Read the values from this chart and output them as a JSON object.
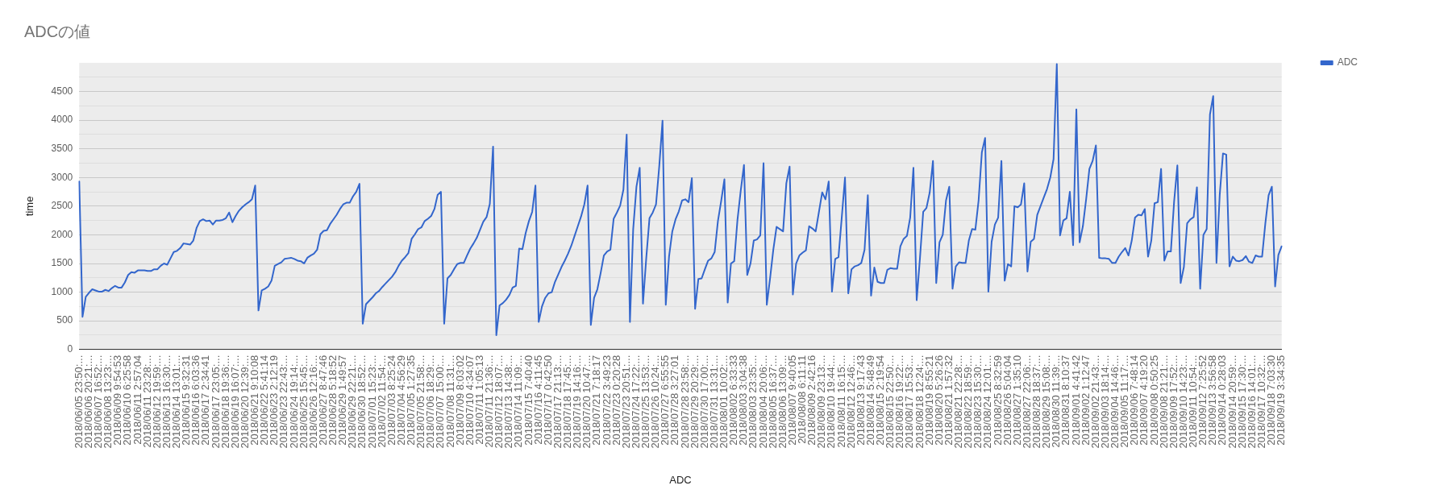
{
  "chart_data": {
    "type": "line",
    "title": "ADCの値",
    "xlabel": "ADC",
    "ylabel": "time",
    "legend": "top right",
    "grid": "y",
    "marker": "none",
    "line_style": "solid",
    "ylim": [
      0,
      5000
    ],
    "yticks": [
      0,
      {
        "value": 250,
        "label": null
      },
      500,
      {
        "value": 750,
        "label": null
      },
      1000,
      {
        "value": 1250,
        "label": null
      },
      1500,
      {
        "value": 1750,
        "label": null
      },
      2000,
      {
        "value": 2250,
        "label": null
      },
      2500,
      {
        "value": 2750,
        "label": null
      },
      3000,
      {
        "value": 3250,
        "label": null
      },
      3500,
      {
        "value": 3750,
        "label": null
      },
      4000,
      {
        "value": 4250,
        "label": null
      },
      4500,
      {
        "value": 4750,
        "label": null
      }
    ],
    "categories": [
      "2018/06/05 23:50:...",
      null,
      null,
      "2018/06/06 20:21:...",
      null,
      null,
      "2018/06/07 16:52:...",
      null,
      null,
      "2018/06/08 13:23:...",
      null,
      null,
      "2018/06/09 9:54:53",
      null,
      null,
      "2018/06/10 6:25:58",
      null,
      null,
      "2018/06/11 2:57:04",
      null,
      null,
      "2018/06/11 23:28:...",
      null,
      null,
      "2018/06/12 19:59:...",
      null,
      null,
      "2018/06/13 16:30:...",
      null,
      null,
      "2018/06/14 13:01:...",
      null,
      null,
      "2018/06/15 9:32:31",
      null,
      null,
      "2018/06/16 6:03:36",
      null,
      null,
      "2018/06/17 2:34:41",
      null,
      null,
      "2018/06/17 23:05:...",
      null,
      null,
      "2018/06/18 19:36:...",
      null,
      null,
      "2018/06/19 16:07:...",
      null,
      null,
      "2018/06/20 12:39:...",
      null,
      null,
      "2018/06/21 9:10:08",
      null,
      null,
      "2018/06/22 5:41:14",
      null,
      null,
      "2018/06/23 2:12:19",
      null,
      null,
      "2018/06/23 22:43:...",
      null,
      null,
      "2018/06/24 19:14:...",
      null,
      null,
      "2018/06/25 15:45:...",
      null,
      null,
      "2018/06/26 12:16:...",
      null,
      null,
      "2018/06/27 8:47:46",
      null,
      null,
      "2018/06/28 5:18:52",
      null,
      null,
      "2018/06/29 1:49:57",
      null,
      null,
      "2018/06/29 22:21:...",
      null,
      null,
      "2018/06/30 18:52:...",
      null,
      null,
      "2018/07/01 15:23:...",
      null,
      null,
      "2018/07/02 11:54:...",
      null,
      null,
      "2018/07/03 8:25:24",
      null,
      null,
      "2018/07/04 4:56:29",
      null,
      null,
      "2018/07/05 1:27:35",
      null,
      null,
      "2018/07/05 21:58:...",
      null,
      null,
      "2018/07/06 18:29:...",
      null,
      null,
      "2018/07/07 15:00:...",
      null,
      null,
      "2018/07/08 11:31:...",
      null,
      null,
      "2018/07/09 8:03:02",
      null,
      null,
      "2018/07/10 4:34:07",
      null,
      null,
      "2018/07/11 1:05:13",
      null,
      null,
      "2018/07/11 21:36:...",
      null,
      null,
      "2018/07/12 18:07:...",
      null,
      null,
      "2018/07/13 14:38:...",
      null,
      null,
      "2018/07/14 11:09:...",
      null,
      null,
      "2018/07/15 7:40:40",
      null,
      null,
      "2018/07/16 4:11:45",
      null,
      null,
      "2018/07/17 0:42:50",
      null,
      null,
      "2018/07/17 21:13:...",
      null,
      null,
      "2018/07/18 17:45:...",
      null,
      null,
      "2018/07/19 14:16:...",
      null,
      null,
      "2018/07/20 10:47:...",
      null,
      null,
      "2018/07/21 7:18:17",
      null,
      null,
      "2018/07/22 3:49:23",
      null,
      null,
      "2018/07/23 0:20:28",
      null,
      null,
      "2018/07/23 20:51:...",
      null,
      null,
      "2018/07/24 17:22:...",
      null,
      null,
      "2018/07/25 13:53:...",
      null,
      null,
      "2018/07/26 10:24:...",
      null,
      null,
      "2018/07/27 6:55:55",
      null,
      null,
      "2018/07/28 3:27:01",
      null,
      null,
      "2018/07/28 23:58:...",
      null,
      null,
      "2018/07/29 20:29:...",
      null,
      null,
      "2018/07/30 17:00:...",
      null,
      null,
      "2018/07/31 13:31:...",
      null,
      null,
      "2018/08/01 10:02:...",
      null,
      null,
      "2018/08/02 6:33:33",
      null,
      null,
      "2018/08/03 3:04:38",
      null,
      null,
      "2018/08/03 23:35:...",
      null,
      null,
      "2018/08/04 20:06:...",
      null,
      null,
      "2018/08/05 16:37:...",
      null,
      null,
      "2018/08/06 13:09:...",
      null,
      null,
      "2018/08/07 9:40:05",
      null,
      null,
      "2018/08/08 6:11:11",
      null,
      null,
      "2018/08/09 2:42:16",
      null,
      null,
      "2018/08/09 23:13:...",
      null,
      null,
      "2018/08/10 19:44:...",
      null,
      null,
      "2018/08/11 16:15:...",
      null,
      null,
      "2018/08/12 12:46:...",
      null,
      null,
      "2018/08/13 9:17:43",
      null,
      null,
      "2018/08/14 5:48:49",
      null,
      null,
      "2018/08/15 2:19:54",
      null,
      null,
      "2018/08/15 22:50:...",
      null,
      null,
      "2018/08/16 19:22:...",
      null,
      null,
      "2018/08/17 15:53:...",
      null,
      null,
      "2018/08/18 12:24:...",
      null,
      null,
      "2018/08/19 8:55:21",
      null,
      null,
      "2018/08/20 5:26:26",
      null,
      null,
      "2018/08/21 1:57:32",
      null,
      null,
      "2018/08/21 22:28:...",
      null,
      null,
      "2018/08/22 18:59:...",
      null,
      null,
      "2018/08/23 15:30:...",
      null,
      null,
      "2018/08/24 12:01:...",
      null,
      null,
      "2018/08/25 8:32:59",
      null,
      null,
      "2018/08/26 5:04:04",
      null,
      null,
      "2018/08/27 1:35:10",
      null,
      null,
      "2018/08/27 22:06:...",
      null,
      null,
      "2018/08/28 18:37:...",
      null,
      null,
      "2018/08/29 15:08:...",
      null,
      null,
      "2018/08/30 11:39:...",
      null,
      null,
      "2018/08/31 8:10:37",
      null,
      null,
      "2018/09/01 4:41:42",
      null,
      null,
      "2018/09/02 1:12:47",
      null,
      null,
      "2018/09/02 21:43:...",
      null,
      null,
      "2018/09/03 18:14:...",
      null,
      null,
      "2018/09/04 14:46:...",
      null,
      null,
      "2018/09/05 11:17:...",
      null,
      null,
      "2018/09/06 7:48:14",
      null,
      null,
      "2018/09/07 4:19:20",
      null,
      null,
      "2018/09/08 0:50:25",
      null,
      null,
      "2018/09/08 21:21:...",
      null,
      null,
      "2018/09/09 17:52:...",
      null,
      null,
      "2018/09/10 14:23:...",
      null,
      null,
      "2018/09/11 10:54:...",
      null,
      null,
      "2018/09/12 7:25:52",
      null,
      null,
      "2018/09/13 3:56:58",
      null,
      null,
      "2018/09/14 0:28:03",
      null,
      null,
      "2018/09/14 20:59:...",
      null,
      null,
      "2018/09/15 17:30:...",
      null,
      null,
      "2018/09/16 14:01:...",
      null,
      null,
      "2018/09/17 10:32:...",
      null,
      null,
      "2018/09/18 7:03:30",
      null,
      null,
      "2018/09/19 3:34:35"
    ],
    "series": [
      {
        "name": "ADC",
        "color": "#3366cc",
        "values": [
          2930,
          570,
          920,
          990,
          1050,
          1030,
          1010,
          1010,
          1040,
          1020,
          1070,
          1110,
          1080,
          1080,
          1170,
          1300,
          1350,
          1340,
          1380,
          1380,
          1380,
          1370,
          1370,
          1400,
          1400,
          1460,
          1500,
          1480,
          1590,
          1700,
          1720,
          1770,
          1850,
          1840,
          1830,
          1900,
          2120,
          2240,
          2270,
          2240,
          2250,
          2180,
          2250,
          2250,
          2260,
          2290,
          2390,
          2220,
          2330,
          2420,
          2480,
          2530,
          2570,
          2620,
          2860,
          680,
          1030,
          1060,
          1100,
          1200,
          1460,
          1490,
          1520,
          1580,
          1590,
          1600,
          1580,
          1550,
          1540,
          1500,
          1600,
          1640,
          1670,
          1740,
          2010,
          2070,
          2080,
          2190,
          2270,
          2350,
          2450,
          2530,
          2560,
          2560,
          2670,
          2750,
          2890,
          450,
          790,
          850,
          910,
          980,
          1020,
          1090,
          1150,
          1210,
          1270,
          1350,
          1460,
          1550,
          1610,
          1680,
          1930,
          2010,
          2100,
          2130,
          2240,
          2280,
          2330,
          2450,
          2700,
          2750,
          450,
          1240,
          1300,
          1400,
          1490,
          1510,
          1510,
          1640,
          1760,
          1850,
          1950,
          2090,
          2230,
          2310,
          2540,
          3540,
          250,
          770,
          810,
          870,
          950,
          1080,
          1110,
          1760,
          1750,
          2030,
          2240,
          2400,
          2860,
          480,
          750,
          900,
          980,
          1000,
          1180,
          1310,
          1440,
          1550,
          1670,
          1810,
          1980,
          2150,
          2320,
          2530,
          2860,
          430,
          900,
          1050,
          1330,
          1640,
          1710,
          1740,
          2280,
          2390,
          2510,
          2790,
          3750,
          480,
          2100,
          2840,
          3170,
          800,
          1590,
          2290,
          2390,
          2530,
          3200,
          3990,
          780,
          1620,
          2060,
          2270,
          2410,
          2600,
          2620,
          2570,
          2990,
          710,
          1230,
          1240,
          1400,
          1550,
          1590,
          1700,
          2240,
          2590,
          2970,
          820,
          1500,
          1540,
          2260,
          2770,
          3220,
          1300,
          1500,
          1900,
          1920,
          1990,
          3250,
          780,
          1240,
          1740,
          2140,
          2100,
          2060,
          2900,
          3190,
          960,
          1500,
          1640,
          1690,
          1730,
          2150,
          2110,
          2060,
          2400,
          2740,
          2620,
          2930,
          1010,
          1580,
          1610,
          2300,
          3000,
          980,
          1400,
          1450,
          1470,
          1510,
          1740,
          2690,
          940,
          1430,
          1180,
          1160,
          1160,
          1390,
          1420,
          1410,
          1410,
          1800,
          1930,
          1980,
          2300,
          3170,
          860,
          1590,
          2400,
          2470,
          2740,
          3290,
          1160,
          1870,
          2000,
          2600,
          2840,
          1060,
          1450,
          1520,
          1510,
          1510,
          1900,
          2100,
          2090,
          2600,
          3440,
          3690,
          1010,
          1880,
          2180,
          2300,
          3290,
          1200,
          1490,
          1450,
          2500,
          2480,
          2530,
          2900,
          1360,
          1880,
          1930,
          2350,
          2500,
          2650,
          2800,
          3000,
          3320,
          4980,
          1990,
          2250,
          2290,
          2750,
          1820,
          4190,
          1870,
          2150,
          2620,
          3150,
          3290,
          3560,
          1600,
          1590,
          1590,
          1580,
          1510,
          1510,
          1620,
          1700,
          1770,
          1640,
          1900,
          2300,
          2350,
          2340,
          2450,
          1620,
          1900,
          2550,
          2570,
          3150,
          1550,
          1710,
          1710,
          2580,
          3210,
          1160,
          1440,
          2200,
          2270,
          2310,
          2830,
          1060,
          2000,
          2100,
          4100,
          4420,
          1510,
          2700,
          3420,
          3400,
          1450,
          1620,
          1550,
          1540,
          1560,
          1630,
          1530,
          1510,
          1640,
          1620,
          1620,
          2200,
          2690,
          2840,
          1100,
          1650,
          1800
        ]
      }
    ]
  }
}
